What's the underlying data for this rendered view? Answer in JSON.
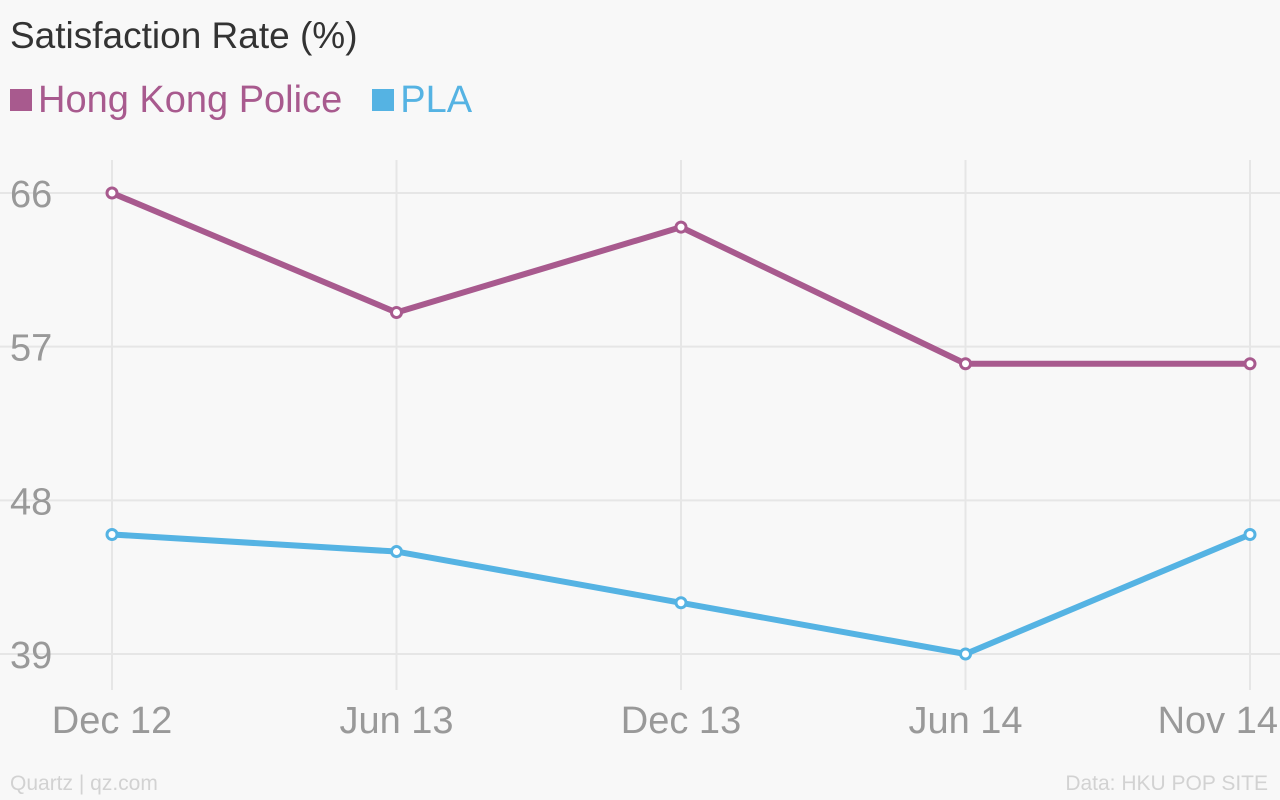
{
  "chart_data": {
    "type": "line",
    "title": "Satisfaction Rate (%)",
    "categories": [
      "Dec 12",
      "Jun 13",
      "Dec 13",
      "Jun 14",
      "Nov 14"
    ],
    "series": [
      {
        "name": "Hong Kong Police",
        "color": "#a85a8e",
        "values": [
          66,
          59,
          64,
          56,
          56
        ]
      },
      {
        "name": "PLA",
        "color": "#55b3e3",
        "values": [
          46,
          45,
          42,
          39,
          46
        ]
      }
    ],
    "yticks": [
      66,
      57,
      48,
      39
    ],
    "ylim": [
      39,
      66
    ],
    "grid": true,
    "legend": "top-left"
  },
  "footer": {
    "credit": "Quartz | qz.com",
    "source": "Data: HKU POP SITE"
  }
}
